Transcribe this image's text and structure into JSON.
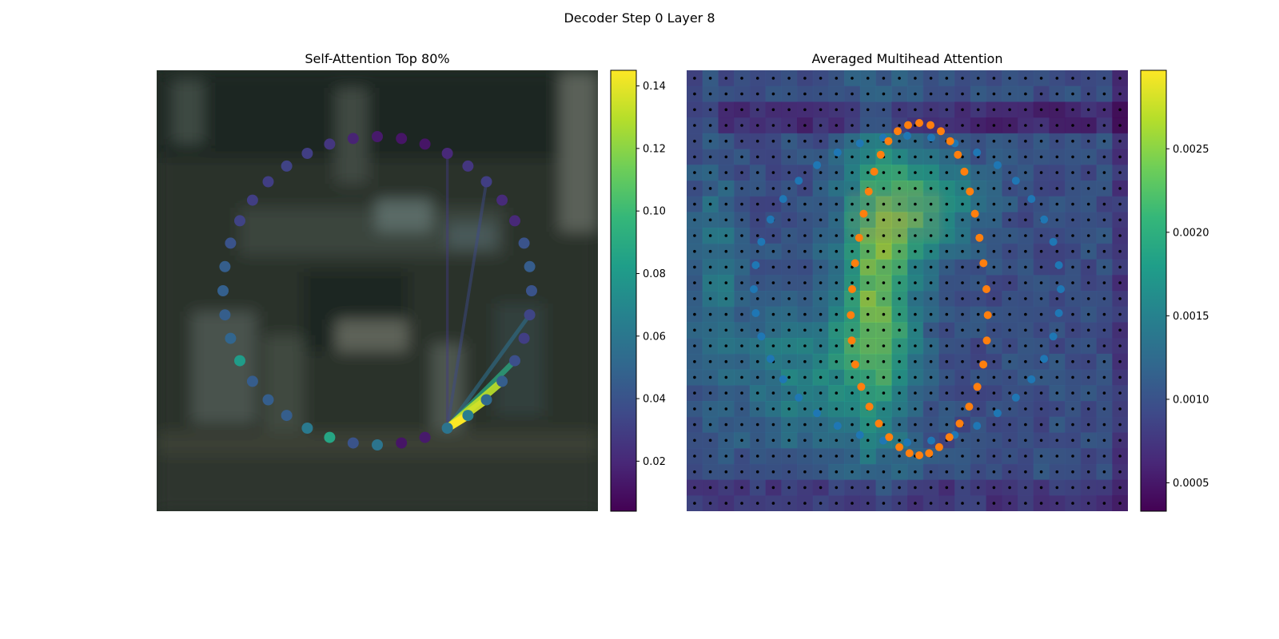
{
  "figure": {
    "title": "Decoder Step 0 Layer 8"
  },
  "colors": {
    "viridis": [
      "#440154",
      "#482878",
      "#3e4a89",
      "#31688e",
      "#26828e",
      "#1f9e89",
      "#35b779",
      "#6ece58",
      "#b5de2b",
      "#fde725"
    ],
    "background_photo": "#2a302b",
    "dot_blue": "#1f77b4",
    "dot_orange": "#ff7f0e",
    "grid_dot": "#000000"
  },
  "chart_data": [
    {
      "type": "scatter",
      "title": "Self-Attention Top 80%",
      "description_kind": "keypoint ring over blurred image with attention edges",
      "n_points": 40,
      "point_values": [
        0.058,
        0.064,
        0.052,
        0.046,
        0.038,
        0.03,
        0.033,
        0.04,
        0.045,
        0.04,
        0.02,
        0.021,
        0.03,
        0.026,
        0.02,
        0.012,
        0.012,
        0.014,
        0.018,
        0.026,
        0.03,
        0.032,
        0.03,
        0.03,
        0.032,
        0.04,
        0.046,
        0.047,
        0.046,
        0.05,
        0.081,
        0.045,
        0.046,
        0.046,
        0.061,
        0.087,
        0.04,
        0.058,
        0.012,
        0.014
      ],
      "attention_source_index": 0,
      "attention_edges": [
        {
          "to": 1,
          "weight": 0.145
        },
        {
          "to": 2,
          "weight": 0.135
        },
        {
          "to": 3,
          "weight": 0.13
        },
        {
          "to": 4,
          "weight": 0.09
        },
        {
          "to": 6,
          "weight": 0.055
        },
        {
          "to": 12,
          "weight": 0.035
        },
        {
          "to": 14,
          "weight": 0.028
        }
      ],
      "colorbar": {
        "min": 0.004,
        "max": 0.145,
        "ticks": [
          0.02,
          0.04,
          0.06,
          0.08,
          0.1,
          0.12,
          0.14
        ],
        "tick_labels": [
          "0.02",
          "0.04",
          "0.06",
          "0.08",
          "0.10",
          "0.12",
          "0.14"
        ]
      }
    },
    {
      "type": "heatmap",
      "title": "Averaged Multihead Attention",
      "grid": {
        "rows": 28,
        "cols": 28
      },
      "series": [
        {
          "name": "",
          "color": "#1f77b4"
        },
        {
          "name": "",
          "color": "#ff7f0e"
        }
      ],
      "colorbar": {
        "min": 0.00033,
        "max": 0.00297,
        "ticks": [
          0.0005,
          0.001,
          0.0015,
          0.002,
          0.0025
        ],
        "tick_labels": [
          "0.0005",
          "0.0010",
          "0.0015",
          "0.0020",
          "0.0025"
        ]
      }
    }
  ]
}
